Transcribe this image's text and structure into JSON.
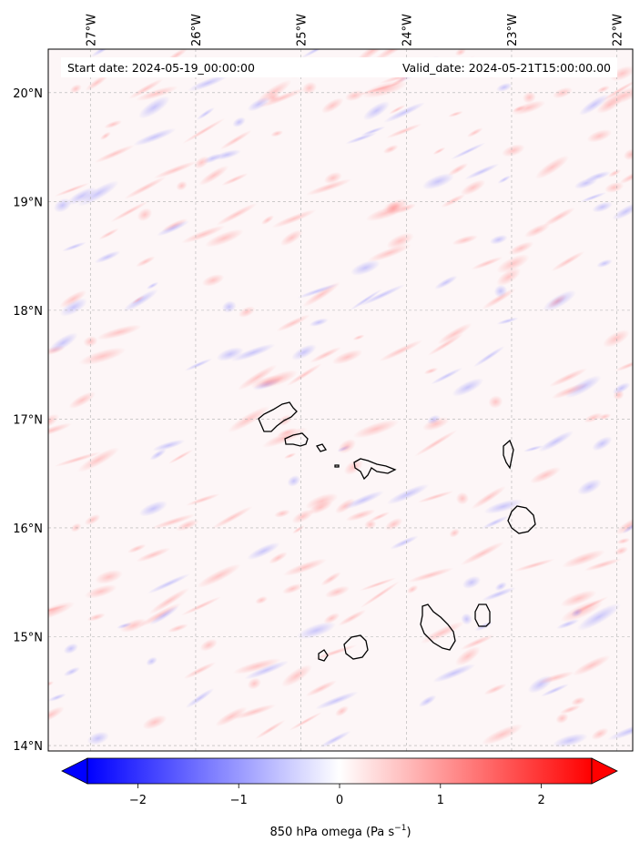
{
  "header": {
    "start_date": "Start date: 2024-05-19_00:00:00",
    "valid_date": "Valid_date: 2024-05-21T15:00:00.00"
  },
  "axes": {
    "lon_ticks": [
      {
        "value": -27,
        "label": "27°W"
      },
      {
        "value": -26,
        "label": "26°W"
      },
      {
        "value": -25,
        "label": "25°W"
      },
      {
        "value": -24,
        "label": "24°W"
      },
      {
        "value": -23,
        "label": "23°W"
      },
      {
        "value": -22,
        "label": "22°W"
      }
    ],
    "lat_ticks": [
      {
        "value": 20,
        "label": "20°N"
      },
      {
        "value": 19,
        "label": "19°N"
      },
      {
        "value": 18,
        "label": "18°N"
      },
      {
        "value": 17,
        "label": "17°N"
      },
      {
        "value": 16,
        "label": "16°N"
      },
      {
        "value": 15,
        "label": "15°N"
      },
      {
        "value": 14,
        "label": "14°N"
      }
    ],
    "lon_range": [
      -27.4,
      -21.85
    ],
    "lat_range": [
      13.95,
      20.4
    ],
    "grid": true
  },
  "colorbar": {
    "label": "850 hPa omega (Pa s",
    "label_sup": "−1",
    "label_end": ")",
    "range": [
      -2.5,
      2.5
    ],
    "extend": "both",
    "low_color": "#0000ff",
    "mid_color": "#ffffff",
    "high_color": "#ff0000",
    "ticks": [
      {
        "value": -2,
        "label": "−2"
      },
      {
        "value": -1,
        "label": "−1"
      },
      {
        "value": 0,
        "label": "0"
      },
      {
        "value": 1,
        "label": "1"
      },
      {
        "value": 2,
        "label": "2"
      }
    ]
  },
  "islands": [
    "Santo Antão",
    "São Vicente",
    "Santa Luzia",
    "São Nicolau",
    "Sal",
    "Boa Vista",
    "Brava",
    "Fogo",
    "Santiago",
    "Maio"
  ]
}
